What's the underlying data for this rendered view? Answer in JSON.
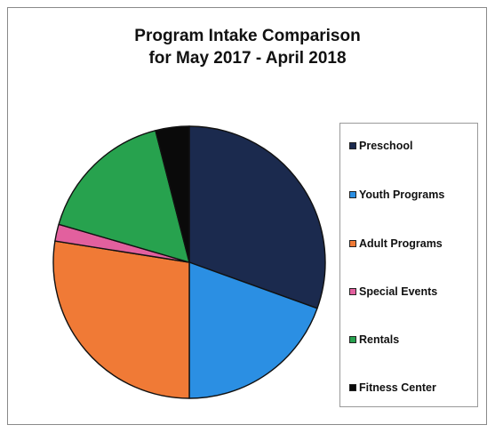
{
  "chart_data": {
    "type": "pie",
    "title": "Program Intake Comparison",
    "subtitle": "for May 2017 - April 2018",
    "legend_position": "right",
    "slices": [
      {
        "label": "Preschool",
        "value": 30.5,
        "color": "#1b2a4e"
      },
      {
        "label": "Youth Programs",
        "value": 19.5,
        "color": "#2b8fe3"
      },
      {
        "label": "Adult Programs",
        "value": 27.5,
        "color": "#f07a36"
      },
      {
        "label": "Special Events",
        "value": 2.0,
        "color": "#e2609e"
      },
      {
        "label": "Rentals",
        "value": 16.5,
        "color": "#27a24e"
      },
      {
        "label": "Fitness Center",
        "value": 4.0,
        "color": "#0a0a0a"
      }
    ]
  }
}
